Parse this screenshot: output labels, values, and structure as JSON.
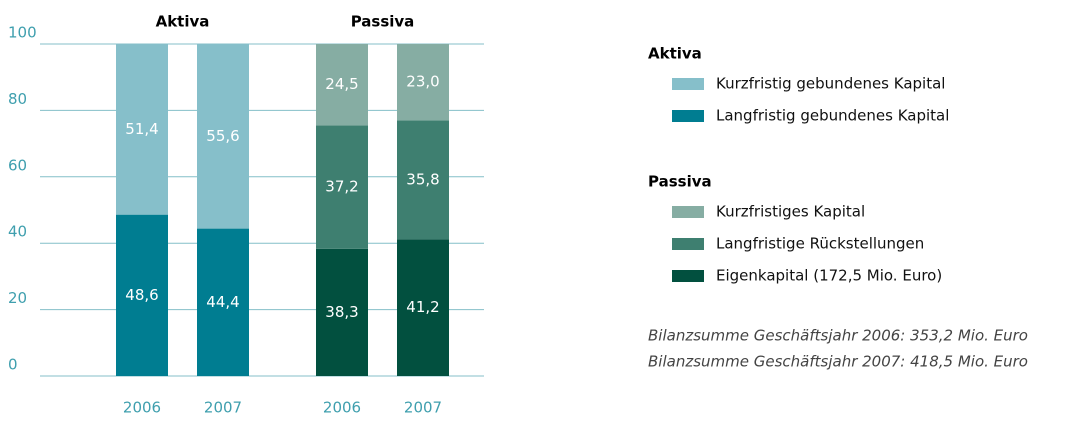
{
  "chart_data": {
    "type": "bar",
    "stacked": true,
    "ylim": [
      0,
      100
    ],
    "yticks": [
      0,
      20,
      40,
      60,
      80,
      100
    ],
    "grid": true,
    "groups": [
      {
        "name": "Aktiva",
        "categories": [
          "2006",
          "2007"
        ],
        "series": [
          {
            "name": "Kurzfristig gebundenes Kapital",
            "color": "#86bfca",
            "values": [
              51.4,
              55.6
            ],
            "value_labels": [
              "51,4",
              "55,6"
            ]
          },
          {
            "name": "Langfristig gebundenes Kapital",
            "color": "#007d91",
            "values": [
              48.6,
              44.4
            ],
            "value_labels": [
              "48,6",
              "44,4"
            ]
          }
        ]
      },
      {
        "name": "Passiva",
        "categories": [
          "2006",
          "2007"
        ],
        "series": [
          {
            "name": "Kurzfristiges Kapital",
            "color": "#86ada3",
            "values": [
              24.5,
              23.0
            ],
            "value_labels": [
              "24,5",
              "23,0"
            ]
          },
          {
            "name": "Langfristige Rückstellungen",
            "color": "#3e7f70",
            "values": [
              37.2,
              35.8
            ],
            "value_labels": [
              "37,2",
              "35,8"
            ]
          },
          {
            "name": "Eigenkapital (172,5 Mio. Euro)",
            "color": "#02503f",
            "values": [
              38.3,
              41.2
            ],
            "value_labels": [
              "38,3",
              "41,2"
            ]
          }
        ]
      }
    ],
    "notes": [
      "Bilanzsumme Geschäftsjahr 2006: 353,2 Mio. Euro",
      "Bilanzsumme Geschäftsjahr 2007: 418,5 Mio. Euro"
    ]
  }
}
